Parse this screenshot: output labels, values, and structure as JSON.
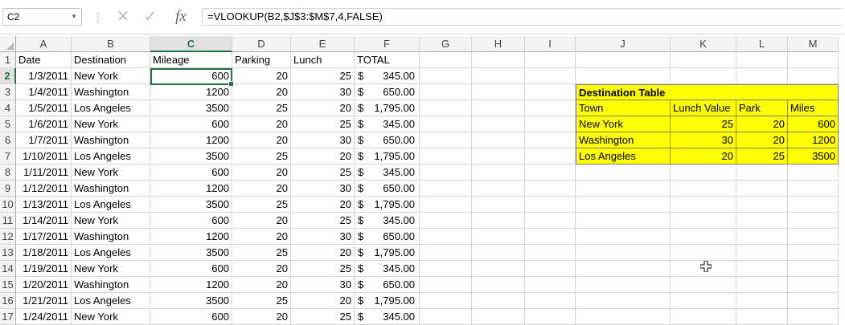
{
  "formula_bar": {
    "name_box": "C2",
    "formula": "=VLOOKUP(B2,$J$3:$M$7,4,FALSE)",
    "cancel_icon": "✕",
    "enter_icon": "✓",
    "fx_icon": "fx"
  },
  "columns": [
    "A",
    "B",
    "C",
    "D",
    "E",
    "F",
    "G",
    "H",
    "I",
    "J",
    "K",
    "L",
    "M"
  ],
  "rows": [
    "1",
    "2",
    "3",
    "4",
    "5",
    "6",
    "7",
    "8",
    "9",
    "10",
    "11",
    "12",
    "13",
    "14",
    "15",
    "16",
    "17"
  ],
  "headers": {
    "date": "Date",
    "destination": "Destination",
    "mileage": "Mileage",
    "parking": "Parking",
    "lunch": "Lunch",
    "total": "TOTAL"
  },
  "records": [
    {
      "date": "1/3/2011",
      "destination": "New York",
      "mileage": "600",
      "parking": "20",
      "lunch": "25",
      "total": "345.00"
    },
    {
      "date": "1/4/2011",
      "destination": "Washington",
      "mileage": "1200",
      "parking": "20",
      "lunch": "30",
      "total": "650.00"
    },
    {
      "date": "1/5/2011",
      "destination": "Los Angeles",
      "mileage": "3500",
      "parking": "25",
      "lunch": "20",
      "total": "1,795.00"
    },
    {
      "date": "1/6/2011",
      "destination": "New York",
      "mileage": "600",
      "parking": "20",
      "lunch": "25",
      "total": "345.00"
    },
    {
      "date": "1/7/2011",
      "destination": "Washington",
      "mileage": "1200",
      "parking": "20",
      "lunch": "30",
      "total": "650.00"
    },
    {
      "date": "1/10/2011",
      "destination": "Los Angeles",
      "mileage": "3500",
      "parking": "25",
      "lunch": "20",
      "total": "1,795.00"
    },
    {
      "date": "1/11/2011",
      "destination": "New York",
      "mileage": "600",
      "parking": "20",
      "lunch": "25",
      "total": "345.00"
    },
    {
      "date": "1/12/2011",
      "destination": "Washington",
      "mileage": "1200",
      "parking": "20",
      "lunch": "30",
      "total": "650.00"
    },
    {
      "date": "1/13/2011",
      "destination": "Los Angeles",
      "mileage": "3500",
      "parking": "25",
      "lunch": "20",
      "total": "1,795.00"
    },
    {
      "date": "1/14/2011",
      "destination": "New York",
      "mileage": "600",
      "parking": "20",
      "lunch": "25",
      "total": "345.00"
    },
    {
      "date": "1/17/2011",
      "destination": "Washington",
      "mileage": "1200",
      "parking": "20",
      "lunch": "30",
      "total": "650.00"
    },
    {
      "date": "1/18/2011",
      "destination": "Los Angeles",
      "mileage": "3500",
      "parking": "25",
      "lunch": "20",
      "total": "1,795.00"
    },
    {
      "date": "1/19/2011",
      "destination": "New York",
      "mileage": "600",
      "parking": "20",
      "lunch": "25",
      "total": "345.00"
    },
    {
      "date": "1/20/2011",
      "destination": "Washington",
      "mileage": "1200",
      "parking": "20",
      "lunch": "30",
      "total": "650.00"
    },
    {
      "date": "1/21/2011",
      "destination": "Los Angeles",
      "mileage": "3500",
      "parking": "25",
      "lunch": "20",
      "total": "1,795.00"
    },
    {
      "date": "1/24/2011",
      "destination": "New York",
      "mileage": "600",
      "parking": "20",
      "lunch": "25",
      "total": "345.00"
    }
  ],
  "currency_symbol": "$",
  "destination_table": {
    "title": "Destination Table",
    "headers": [
      "Town",
      "Lunch Value",
      "Park",
      "Miles"
    ],
    "rows": [
      [
        "New York",
        "25",
        "20",
        "600"
      ],
      [
        "Washington",
        "30",
        "20",
        "1200"
      ],
      [
        "Los Angeles",
        "20",
        "25",
        "3500"
      ]
    ]
  },
  "colors": {
    "highlight": "#ffff00",
    "selection": "#217346",
    "gridline": "#d4d4d4"
  },
  "active_cell": "C2",
  "pointer_icon": "crosshair-cursor-icon"
}
